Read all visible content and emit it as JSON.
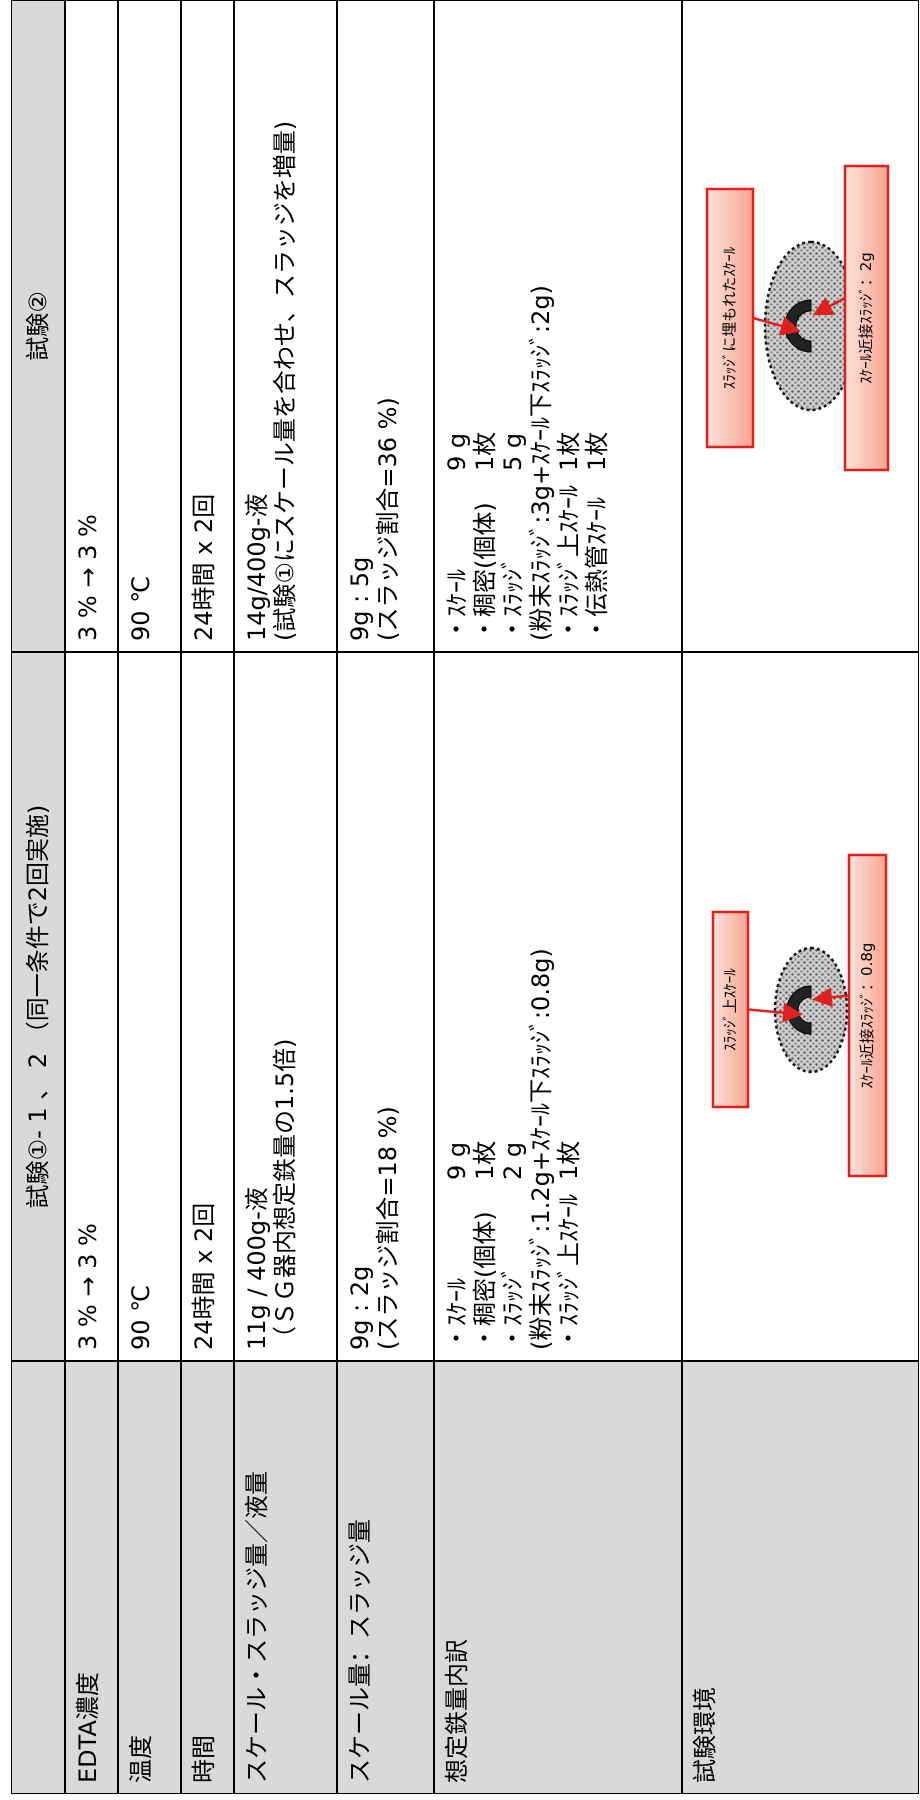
{
  "header": {
    "columns": [
      "試験①- 1 、 2 （同一条件で2回実施)",
      "試験②"
    ]
  },
  "rows": [
    {
      "label": "EDTA濃度",
      "cells": [
        {
          "lines": [
            "3 % → 3 %"
          ]
        },
        {
          "lines": [
            "3 % → 3 %"
          ]
        }
      ]
    },
    {
      "label": "温度",
      "cells": [
        {
          "lines": [
            "90 ℃"
          ]
        },
        {
          "lines": [
            "90 ℃"
          ]
        }
      ]
    },
    {
      "label": "時間",
      "cells": [
        {
          "lines": [
            "24時間 x 2回"
          ]
        },
        {
          "lines": [
            "24時間 x 2回"
          ]
        }
      ]
    },
    {
      "label": "スケール・スラッジ量／液量",
      "cells": [
        {
          "lines": [
            "11g / 400g-液",
            "（ＳＧ器内想定鉄量の1.5倍)"
          ]
        },
        {
          "lines": [
            "14g/400g-液",
            "(試験①にスケール量を合わせ、スラッジを増量)"
          ]
        }
      ]
    },
    {
      "label": "スケール量：スラッジ量",
      "cells": [
        {
          "lines": [
            "9g : 2g",
            "(スラッジ割合=18 %)"
          ]
        },
        {
          "lines": [
            "9g : 5g",
            "(スラッジ割合=36 %)"
          ]
        }
      ]
    },
    {
      "label": "想定鉄量内訳",
      "cells": [
        {
          "lines": [
            {
              "name": "・ｽｹｰﾙ",
              "amount": "9 g"
            },
            {
              "name": "・稠密(個体)",
              "amount": "1枚"
            },
            {
              "name": "・ｽﾗｯｼﾞ",
              "amount": "2 g"
            },
            "(粉末ｽﾗｯｼﾞ:1.2g+ｽｹｰﾙ下ｽﾗｯｼﾞ:0.8g)",
            {
              "name": "・ｽﾗｯｼﾞ上ｽｹｰﾙ",
              "amount": "1枚"
            }
          ]
        },
        {
          "lines": [
            {
              "name": "・ｽｹｰﾙ",
              "amount": "9 g"
            },
            {
              "name": "・稠密(個体)",
              "amount": "1枚"
            },
            {
              "name": "・ｽﾗｯｼﾞ",
              "amount": "5 g"
            },
            "(粉末ｽﾗｯｼﾞ:3g+ｽｹｰﾙ下ｽﾗｯｼﾞ:2g)",
            {
              "name": "・ｽﾗｯｼﾞ上ｽｹｰﾙ",
              "amount": "1枚"
            },
            {
              "name": "・伝熱管ｽｹｰﾙ",
              "amount": "1枚"
            }
          ]
        }
      ]
    },
    {
      "label": "試験環境",
      "cells": [
        {
          "diagram": {
            "top_label": "ｽﾗｯｼﾞ上ｽｹｰﾙ",
            "bottom_label": "ｽｹｰﾙ近接ｽﾗｯｼﾞ：0.8g"
          }
        },
        {
          "diagram": {
            "top_label": "ｽﾗｯｼﾞに埋もれたｽｹｰﾙ",
            "bottom_label": "ｽｹｰﾙ近接ｽﾗｯｼﾞ：2g"
          }
        }
      ]
    }
  ]
}
